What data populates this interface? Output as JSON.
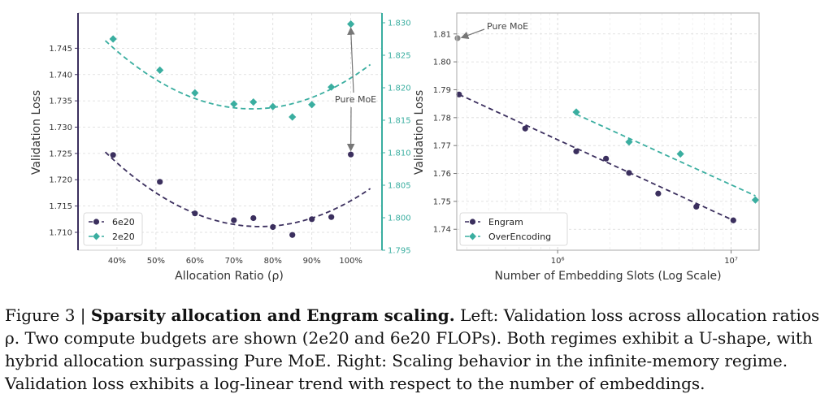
{
  "chart_data": [
    {
      "type": "line",
      "xlabel": "Allocation Ratio (ρ)",
      "ylabel": "Validation Loss",
      "xlim": [
        30,
        108
      ],
      "x_ticks": [
        40,
        50,
        60,
        70,
        80,
        90,
        100
      ],
      "x_tick_labels": [
        "40%",
        "50%",
        "60%",
        "70%",
        "80%",
        "90%",
        "100%"
      ],
      "y_left": {
        "lim": [
          1.7066,
          1.7517
        ],
        "ticks": [
          1.71,
          1.715,
          1.72,
          1.725,
          1.73,
          1.735,
          1.74,
          1.745
        ],
        "tick_labels": [
          "1.710",
          "1.715",
          "1.720",
          "1.725",
          "1.730",
          "1.735",
          "1.740",
          "1.745"
        ]
      },
      "y_right": {
        "lim": [
          1.795,
          1.8315
        ],
        "ticks": [
          1.795,
          1.8,
          1.805,
          1.81,
          1.815,
          1.82,
          1.825,
          1.83
        ],
        "tick_labels": [
          "1.795",
          "1.800",
          "1.805",
          "1.810",
          "1.815",
          "1.820",
          "1.825",
          "1.830"
        ]
      },
      "grid": true,
      "legend": "lower-left",
      "series": [
        {
          "name": "6e20",
          "axis": "left",
          "marker": "circle",
          "color": "#3b2f5e",
          "x": [
            39,
            51,
            60,
            70,
            75,
            80,
            85,
            90,
            95,
            100
          ],
          "y": [
            1.7247,
            1.7196,
            1.7136,
            1.7123,
            1.7127,
            1.711,
            1.7095,
            1.7125,
            1.7129,
            1.7248
          ],
          "fit": {
            "x_range": [
              37,
              105
            ],
            "coef": [
              9e-06,
              -0.00138,
              1.764
            ]
          }
        },
        {
          "name": "2e20",
          "axis": "right",
          "marker": "diamond",
          "color": "#3aaea0",
          "x": [
            39,
            51,
            60,
            70,
            75,
            80,
            85,
            90,
            95,
            100
          ],
          "y": [
            1.8275,
            1.8227,
            1.8192,
            1.8175,
            1.8178,
            1.8171,
            1.8155,
            1.8174,
            1.8201,
            1.8298
          ],
          "fit": {
            "x_range": [
              37,
              105
            ],
            "coef": [
              7.4e-06,
              -0.001105,
              1.858
            ]
          }
        }
      ],
      "annotations": [
        {
          "text": "Pure MoE",
          "points_to": [
            {
              "series": "2e20",
              "x": 100
            },
            {
              "series": "6e20",
              "x": 100
            }
          ]
        }
      ]
    },
    {
      "type": "line",
      "xlabel": "Number of Embedding Slots (Log Scale)",
      "ylabel": "Validation Loss",
      "x_scale": "log",
      "xlim": [
        262000,
        14500000
      ],
      "x_ticks": [
        1000000,
        10000000
      ],
      "x_tick_labels": [
        "10⁶",
        "10⁷"
      ],
      "ylim": [
        1.7325,
        1.8175
      ],
      "y_ticks": [
        1.74,
        1.75,
        1.76,
        1.77,
        1.78,
        1.79,
        1.8,
        1.81
      ],
      "y_tick_labels": [
        "1.74",
        "1.75",
        "1.76",
        "1.77",
        "1.78",
        "1.79",
        "1.80",
        "1.81"
      ],
      "grid": true,
      "legend": "lower-left",
      "series": [
        {
          "name": "Engram",
          "marker": "circle",
          "color": "#3b2f5e",
          "x": [
            270000,
            650000,
            1280000,
            1900000,
            2580000,
            3800000,
            6300000,
            10300000
          ],
          "y": [
            1.7883,
            1.7761,
            1.7679,
            1.7653,
            1.7602,
            1.7528,
            1.7481,
            1.7432
          ],
          "fit": {
            "x": [
              270000,
              10300000
            ],
            "y": [
              1.7883,
              1.7432
            ]
          }
        },
        {
          "name": "OverEncoding",
          "marker": "diamond",
          "color": "#3aaea0",
          "x": [
            1280000,
            2580000,
            5100000,
            13800000
          ],
          "y": [
            1.782,
            1.7713,
            1.767,
            1.7505
          ],
          "fit": {
            "x": [
              1280000,
              13800000
            ],
            "y": [
              1.7812,
              1.752
            ]
          }
        }
      ],
      "annotations": [
        {
          "text": "Pure MoE",
          "x": 262000,
          "y": 1.8085,
          "color": "#888888"
        }
      ]
    }
  ],
  "caption": {
    "prefix": "Figure 3 | ",
    "bold": "Sparsity allocation and Engram scaling.",
    "body": " Left: Validation loss across allocation ratios ρ. Two compute budgets are shown (2e20 and 6e20 FLOPs). Both regimes exhibit a U-shape, with hybrid allocation surpassing Pure MoE. Right: Scaling behavior in the infinite-memory regime. Validation loss exhibits a log-linear trend with respect to the number of embeddings."
  }
}
